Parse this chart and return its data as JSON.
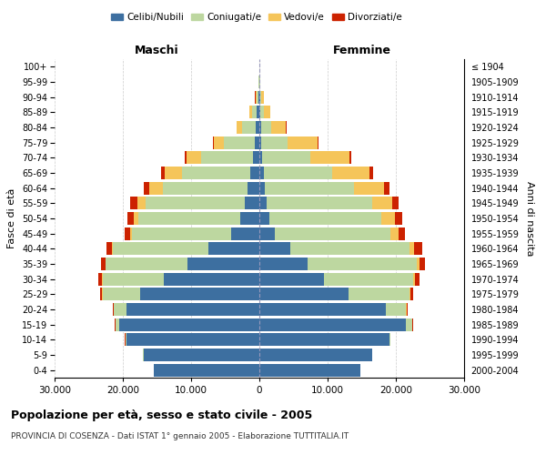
{
  "age_groups": [
    "0-4",
    "5-9",
    "10-14",
    "15-19",
    "20-24",
    "25-29",
    "30-34",
    "35-39",
    "40-44",
    "45-49",
    "50-54",
    "55-59",
    "60-64",
    "65-69",
    "70-74",
    "75-79",
    "80-84",
    "85-89",
    "90-94",
    "95-99",
    "100+"
  ],
  "birth_years": [
    "2000-2004",
    "1995-1999",
    "1990-1994",
    "1985-1989",
    "1980-1984",
    "1975-1979",
    "1970-1974",
    "1965-1969",
    "1960-1964",
    "1955-1959",
    "1950-1954",
    "1945-1949",
    "1940-1944",
    "1935-1939",
    "1930-1934",
    "1925-1929",
    "1920-1924",
    "1915-1919",
    "1910-1914",
    "1905-1909",
    "≤ 1904"
  ],
  "male_celibi": [
    15500,
    17000,
    19500,
    20500,
    19500,
    17500,
    14000,
    10500,
    7500,
    4200,
    2800,
    2200,
    1700,
    1400,
    1000,
    700,
    500,
    350,
    150,
    60,
    20
  ],
  "male_coniugati": [
    10,
    50,
    150,
    600,
    1800,
    5500,
    9000,
    12000,
    14000,
    14500,
    15000,
    14500,
    12500,
    10000,
    7500,
    4500,
    2000,
    700,
    300,
    80,
    30
  ],
  "male_vedovi": [
    3,
    5,
    10,
    20,
    30,
    50,
    80,
    100,
    150,
    300,
    600,
    1200,
    2000,
    2500,
    2200,
    1500,
    800,
    400,
    150,
    40,
    10
  ],
  "male_divorziati": [
    5,
    10,
    30,
    80,
    150,
    300,
    500,
    600,
    700,
    800,
    900,
    1000,
    800,
    500,
    200,
    80,
    40,
    20,
    10,
    5,
    2
  ],
  "female_celibi": [
    14800,
    16500,
    19000,
    21500,
    18500,
    13000,
    9500,
    7000,
    4500,
    2200,
    1400,
    1000,
    800,
    600,
    400,
    280,
    200,
    150,
    80,
    40,
    15
  ],
  "female_coniugati": [
    15,
    60,
    200,
    900,
    3000,
    9000,
    13000,
    16000,
    17500,
    17000,
    16500,
    15500,
    13000,
    10000,
    7000,
    3800,
    1500,
    500,
    200,
    60,
    20
  ],
  "female_vedovi": [
    3,
    8,
    15,
    40,
    80,
    150,
    250,
    400,
    700,
    1200,
    2000,
    3000,
    4500,
    5500,
    5800,
    4500,
    2200,
    900,
    350,
    80,
    15
  ],
  "female_divorziati": [
    5,
    10,
    30,
    80,
    180,
    400,
    700,
    900,
    1200,
    950,
    1000,
    900,
    700,
    500,
    250,
    100,
    50,
    25,
    10,
    5,
    2
  ],
  "colors": {
    "celibi": "#3D6FA0",
    "coniugati": "#BDD7A0",
    "vedovi": "#F5C55A",
    "divorziati": "#CC2200"
  },
  "xlim": 30000,
  "title": "Popolazione per età, sesso e stato civile - 2005",
  "subtitle": "PROVINCIA DI COSENZA - Dati ISTAT 1° gennaio 2005 - Elaborazione TUTTITALIA.IT",
  "xlabel_maschi": "Maschi",
  "xlabel_femmine": "Femmine",
  "ylabel_left": "Fasce di età",
  "ylabel_right": "Anni di nascita",
  "xticks": [
    -30000,
    -20000,
    -10000,
    0,
    10000,
    20000,
    30000
  ],
  "xtick_labels": [
    "30.000",
    "20.000",
    "10.000",
    "0",
    "10.000",
    "20.000",
    "30.000"
  ],
  "bg_color": "#ffffff",
  "grid_color": "#cccccc"
}
